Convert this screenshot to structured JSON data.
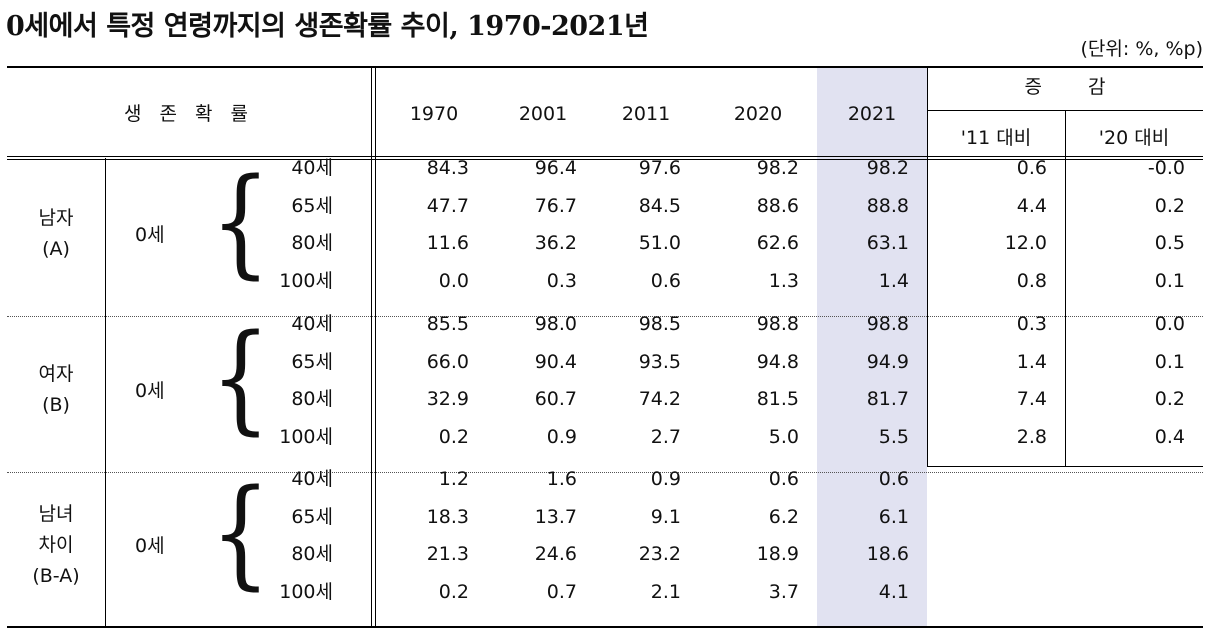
{
  "title": "0세에서 특정 연령까지의 생존확률 추이, 1970-2021년",
  "unit": "(단위: %, %p)",
  "header": {
    "label": "생 존 확 률",
    "years": [
      "1970",
      "2001",
      "2011",
      "2020",
      "2021"
    ],
    "change": "증 감",
    "change_sub": [
      "'11 대비",
      "'20 대비"
    ]
  },
  "highlight_color": "#e1e2f1",
  "groups": [
    {
      "label_lines": [
        "남자",
        "(A)"
      ],
      "base": "0세",
      "rows": [
        {
          "age": "40세",
          "values": [
            "84.3",
            "96.4",
            "97.6",
            "98.2",
            "98.2"
          ],
          "changes": [
            "0.6",
            "-0.0"
          ]
        },
        {
          "age": "65세",
          "values": [
            "47.7",
            "76.7",
            "84.5",
            "88.6",
            "88.8"
          ],
          "changes": [
            "4.4",
            "0.2"
          ]
        },
        {
          "age": "80세",
          "values": [
            "11.6",
            "36.2",
            "51.0",
            "62.6",
            "63.1"
          ],
          "changes": [
            "12.0",
            "0.5"
          ]
        },
        {
          "age": "100세",
          "values": [
            "0.0",
            "0.3",
            "0.6",
            "1.3",
            "1.4"
          ],
          "changes": [
            "0.8",
            "0.1"
          ]
        }
      ]
    },
    {
      "label_lines": [
        "여자",
        "(B)"
      ],
      "base": "0세",
      "rows": [
        {
          "age": "40세",
          "values": [
            "85.5",
            "98.0",
            "98.5",
            "98.8",
            "98.8"
          ],
          "changes": [
            "0.3",
            "0.0"
          ]
        },
        {
          "age": "65세",
          "values": [
            "66.0",
            "90.4",
            "93.5",
            "94.8",
            "94.9"
          ],
          "changes": [
            "1.4",
            "0.1"
          ]
        },
        {
          "age": "80세",
          "values": [
            "32.9",
            "60.7",
            "74.2",
            "81.5",
            "81.7"
          ],
          "changes": [
            "7.4",
            "0.2"
          ]
        },
        {
          "age": "100세",
          "values": [
            "0.2",
            "0.9",
            "2.7",
            "5.0",
            "5.5"
          ],
          "changes": [
            "2.8",
            "0.4"
          ]
        }
      ]
    },
    {
      "label_lines": [
        "남녀",
        "차이",
        "(B-A)"
      ],
      "base": "0세",
      "rows": [
        {
          "age": "40세",
          "values": [
            "1.2",
            "1.6",
            "0.9",
            "0.6",
            "0.6"
          ],
          "changes": []
        },
        {
          "age": "65세",
          "values": [
            "18.3",
            "13.7",
            "9.1",
            "6.2",
            "6.1"
          ],
          "changes": []
        },
        {
          "age": "80세",
          "values": [
            "21.3",
            "24.6",
            "23.2",
            "18.9",
            "18.6"
          ],
          "changes": []
        },
        {
          "age": "100세",
          "values": [
            "0.2",
            "0.7",
            "2.1",
            "3.7",
            "4.1"
          ],
          "changes": []
        }
      ]
    }
  ]
}
